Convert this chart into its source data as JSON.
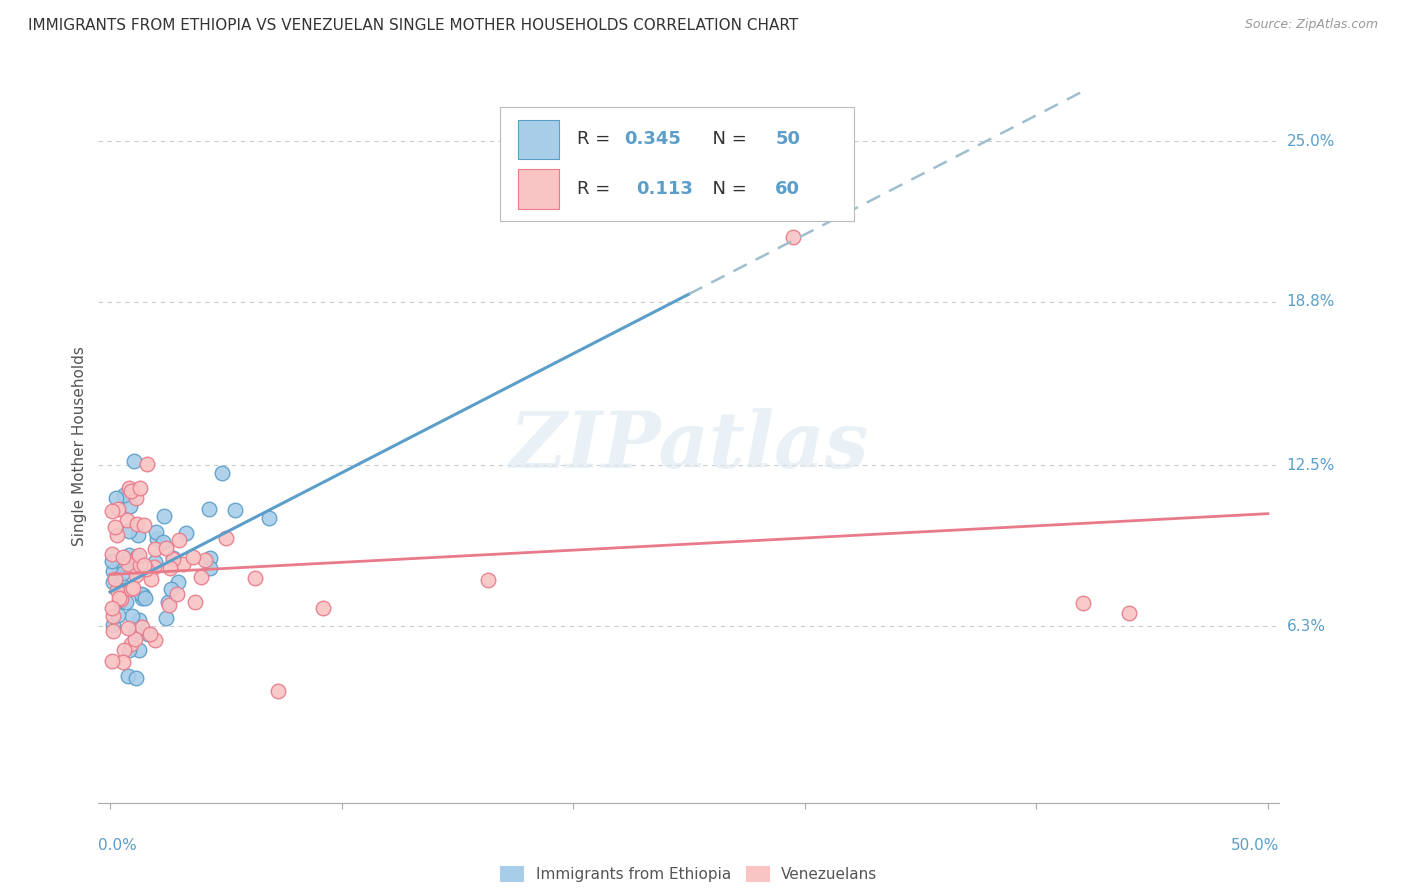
{
  "title": "IMMIGRANTS FROM ETHIOPIA VS VENEZUELAN SINGLE MOTHER HOUSEHOLDS CORRELATION CHART",
  "source": "Source: ZipAtlas.com",
  "ylabel": "Single Mother Households",
  "ytick_labels": [
    "6.3%",
    "12.5%",
    "18.8%",
    "25.0%"
  ],
  "ytick_values": [
    0.063,
    0.125,
    0.188,
    0.25
  ],
  "xlim": [
    0.0,
    0.5
  ],
  "ylim": [
    0.0,
    0.27
  ],
  "series1_label": "Immigrants from Ethiopia",
  "series1_color": "#a8cde8",
  "series1_edge_color": "#5b9ec9",
  "series1_R": 0.345,
  "series1_N": 50,
  "series2_label": "Venezuelans",
  "series2_color": "#f9c4c4",
  "series2_edge_color": "#e87a8a",
  "series2_R": 0.113,
  "series2_N": 60,
  "watermark": "ZIPatlas",
  "legend_R_color": "#333333",
  "legend_val_color": "#5b9ec9",
  "legend_N_color": "#5b9ec9"
}
